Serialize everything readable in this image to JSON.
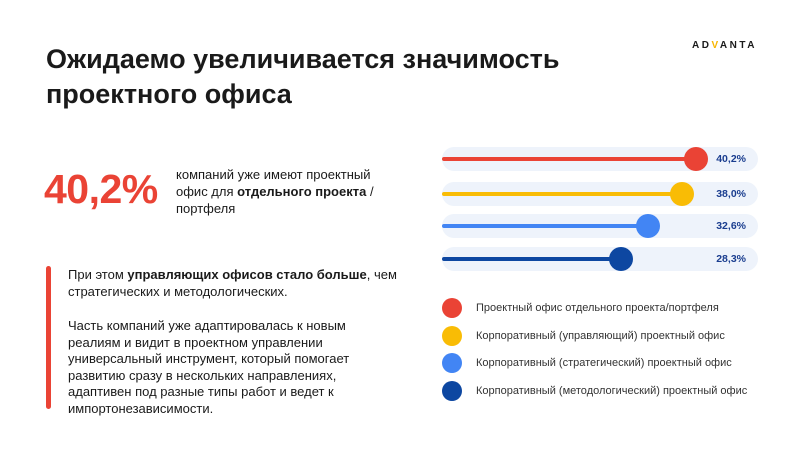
{
  "logo": {
    "pre": "AD",
    "v": "V",
    "post": "ANTA"
  },
  "title": "Ожидаемо увеличивается значимость проектного офиса",
  "stat": {
    "value": "40,2%",
    "text_pre": "компаний уже имеют проектный офис для ",
    "text_bold": "отдельного проекта",
    "text_post": " / портфеля"
  },
  "para1": {
    "pre": "При этом ",
    "bold": "управляющих офисов стало больше",
    "post": ", чем стратегических и методологических."
  },
  "para2": "Часть компаний уже адаптировалась к новым реалиям и видит в проектном управлении универсальный инструмент, который помогает развитию сразу в нескольких направлениях, адаптивен под разные типы работ и ведет к импортонезависимости.",
  "colors": {
    "accent": "#ea4335"
  },
  "chart_data": {
    "type": "bar",
    "orientation": "horizontal",
    "value_unit": "%",
    "max": 50,
    "legend_position": "bottom",
    "series": [
      {
        "name": "Проектный офис отдельного проекта/портфеля",
        "value": 40.2,
        "label": "40,2%",
        "color": "#ea4335"
      },
      {
        "name": "Корпоративный (управляющий) проектный офис",
        "value": 38.0,
        "label": "38,0%",
        "color": "#f9bc05"
      },
      {
        "name": "Корпоративный (стратегический) проектный офис",
        "value": 32.6,
        "label": "32,6%",
        "color": "#4285f4"
      },
      {
        "name": "Корпоративный (методологический) проектный офис",
        "value": 28.3,
        "label": "28,3%",
        "color": "#0d47a1"
      }
    ]
  }
}
